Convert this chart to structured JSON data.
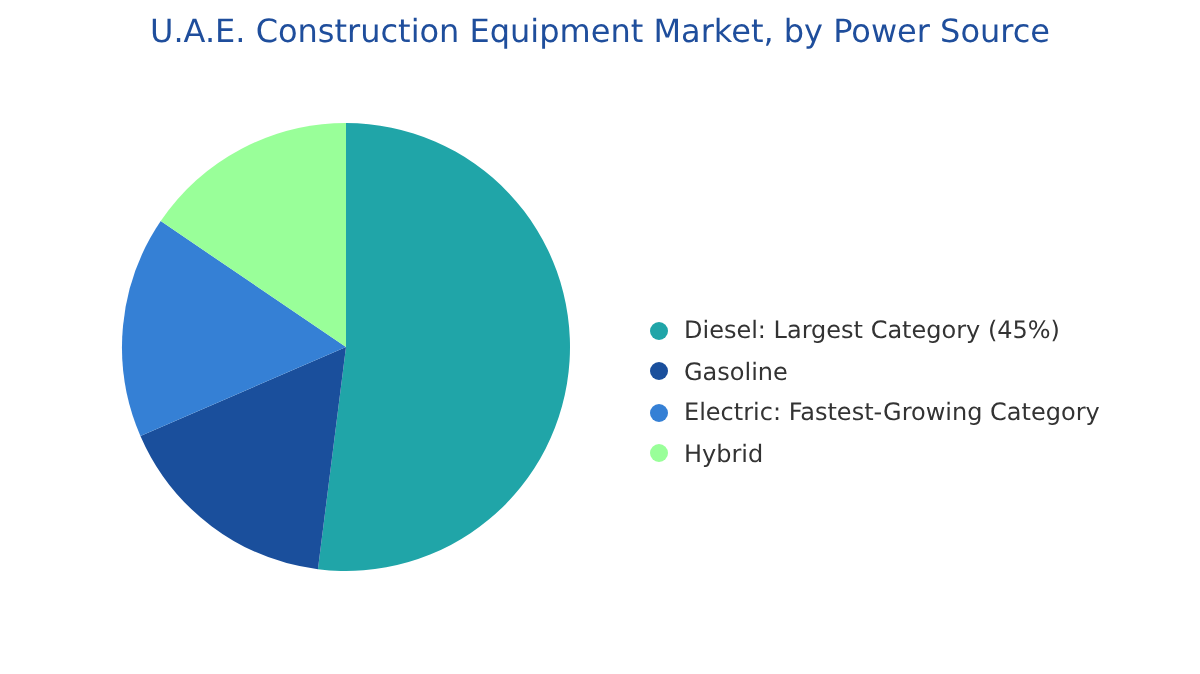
{
  "chart_data": {
    "type": "pie",
    "title": "U.A.E. Construction Equipment Market, by Power Source",
    "categories": [
      "Diesel:  Largest Category (45%)",
      "Gasoline",
      "Electric:  Fastest-Growing Category",
      "Hybrid"
    ],
    "values": [
      52,
      16.5,
      16,
      15.5
    ],
    "colors": [
      "#20a5a8",
      "#1a4f9c",
      "#3580d5",
      "#99ff99"
    ],
    "legend": "right"
  }
}
